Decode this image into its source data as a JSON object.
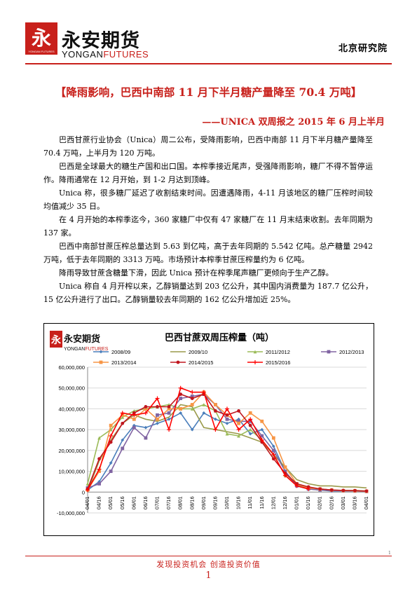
{
  "header": {
    "logo_glyph": "永",
    "logo_small": "YONGAN FUTURES",
    "logo_cn": "永安期货",
    "logo_en_a": "YONGAN",
    "logo_en_b": "FUTURES",
    "dept": "北京研究院"
  },
  "title": "【降雨影响，巴西中南部 11 月下半月糖产量降至 70.4 万吨】",
  "subtitle": "——UNICA 双周报之 2015 年 6 月上半月",
  "paragraphs": [
    "巴西甘蔗行业协会（Unica）周二公布，受降雨影响，巴西中南部 11 月下半月糖产量降至 70.4 万吨，上半月为 120 万吨。",
    "巴西是全球最大的糖生产国和出口国。本榨季接近尾声，受强降雨影响，糖厂不得不暂停运作。降雨通常在 12 月开始，到 1-2 月达到顶峰。",
    "Unica 称，很多糖厂延迟了收割结束时间。因遭遇降雨，4-11 月该地区的糖厂压榨时间较均值减少 35 日。",
    "在 4 月开始的本榨季迄今，360 家糖厂中仅有 47 家糖厂在 11 月末结束收割。去年同期为 137 家。",
    "巴西中南部甘蔗压榨总量达到 5.63 到亿吨，高于去年同期的 5.542 亿吨。总产糖量 2942 万吨，低于去年同期的 3313 万吨。市场预计本榨季甘蔗压榨量约为 6 亿吨。",
    "降雨导致甘蔗含糖量下滑，因此 Unica 预计在榨季尾声糖厂更倾向于生产乙醇。",
    "Unica 称自 4 月开榨以来，乙醇销量达到 203 亿公升，其中国内消费量为 187.7 亿公升，15 亿公升进行了出口。乙醇销量较去年同期的 162 亿公升增加近 25%。"
  ],
  "chart_data": {
    "type": "line",
    "title": "巴西甘蔗双周压榨量（吨）",
    "x": [
      "04/01",
      "04/16",
      "05/01",
      "05/16",
      "06/01",
      "06/16",
      "07/01",
      "07/16",
      "08/01",
      "08/16",
      "09/01",
      "09/16",
      "10/01",
      "10/16",
      "11/01",
      "11/16",
      "12/01",
      "12/16",
      "01/01",
      "01/16",
      "02/01",
      "02/16",
      "03/01",
      "03/16",
      "04/01"
    ],
    "x_tick_labels": [
      "04/01",
      "04/16",
      "05/01",
      "05/16",
      "06/01",
      "06/16",
      "07/01",
      "07/16",
      "08/01",
      "08/16",
      "09/01",
      "09/16",
      "10/01",
      "10/16",
      "11/01",
      "11/16",
      "12/01",
      "12/16",
      "01/01",
      "01/16",
      "02/01",
      "02/16",
      "03/01",
      "03/16",
      "04/01"
    ],
    "ylim": [
      -10000000,
      60000000
    ],
    "y_ticks": [
      -10000000,
      0,
      10000000,
      20000000,
      30000000,
      40000000,
      50000000,
      60000000
    ],
    "y_tick_labels": [
      "-10,000,000",
      "0",
      "10,000,000",
      "20,000,000",
      "30,000,000",
      "40,000,000",
      "50,000,000",
      "60,000,000"
    ],
    "grid": true,
    "legend_position": "top",
    "series": [
      {
        "name": "2008/09",
        "color": "#4a7ebb",
        "marker": "diamond",
        "values": [
          1000000,
          5000000,
          14000000,
          25000000,
          32000000,
          31000000,
          33000000,
          35000000,
          38000000,
          30000000,
          38000000,
          35000000,
          33000000,
          35000000,
          28000000,
          30000000,
          22000000,
          10000000,
          3000000,
          1500000,
          1000000,
          500000,
          500000,
          500000,
          300000
        ]
      },
      {
        "name": "2009/10",
        "color": "#9a9a4a",
        "marker": "none",
        "values": [
          500000,
          15000000,
          25000000,
          33000000,
          37000000,
          35000000,
          34000000,
          36000000,
          42000000,
          41000000,
          31000000,
          30000000,
          29000000,
          28000000,
          26000000,
          24000000,
          18000000,
          12000000,
          6000000,
          4000000,
          3000000,
          3000000,
          2500000,
          2500000,
          2000000
        ]
      },
      {
        "name": "2011/2012",
        "color": "#9bbb59",
        "marker": "triangle",
        "values": [
          4000000,
          26000000,
          30000000,
          36000000,
          39000000,
          40000000,
          41000000,
          42000000,
          40000000,
          40000000,
          42000000,
          39000000,
          28000000,
          27000000,
          30000000,
          25000000,
          18000000,
          8000000,
          3500000,
          2000000,
          1500000,
          1000000,
          800000,
          800000,
          500000
        ]
      },
      {
        "name": "2012/2013",
        "color": "#8064a2",
        "marker": "square",
        "values": [
          2000000,
          4000000,
          10000000,
          21000000,
          31000000,
          26000000,
          37000000,
          38000000,
          45000000,
          46000000,
          47000000,
          42000000,
          35000000,
          34000000,
          34000000,
          27000000,
          20000000,
          10000000,
          3000000,
          1500000,
          1000000,
          800000,
          600000,
          500000,
          300000
        ]
      },
      {
        "name": "2013/2014",
        "color": "#f79646",
        "marker": "square",
        "values": [
          1000000,
          10000000,
          32000000,
          37000000,
          35000000,
          40000000,
          35000000,
          40000000,
          40000000,
          42000000,
          48000000,
          42000000,
          37000000,
          33000000,
          38000000,
          34000000,
          26000000,
          12000000,
          4000000,
          2000000,
          1500000,
          1000000,
          700000,
          600000,
          400000
        ]
      },
      {
        "name": "2014/2015",
        "color": "#c0161e",
        "marker": "circle",
        "values": [
          1500000,
          16000000,
          24000000,
          33000000,
          38000000,
          41000000,
          41000000,
          41000000,
          47000000,
          45000000,
          47000000,
          39000000,
          37000000,
          39000000,
          32000000,
          24000000,
          16000000,
          9000000,
          4000000,
          2500000,
          1500000,
          1000000,
          800000,
          700000,
          500000
        ]
      },
      {
        "name": "2015/2016",
        "color": "#ff0000",
        "marker": "plus",
        "values": [
          1000000,
          11000000,
          27000000,
          38000000,
          37000000,
          38000000,
          45000000,
          30000000,
          50000000,
          48000000,
          48000000,
          30000000,
          40000000,
          30000000,
          35000000,
          25000000,
          18000000,
          8000000,
          3000000,
          1500000,
          null,
          null,
          null,
          null,
          null
        ]
      }
    ]
  },
  "footer": {
    "slogan": "发现投资机会 创造投资价值",
    "page": "1",
    "corner": "1"
  }
}
